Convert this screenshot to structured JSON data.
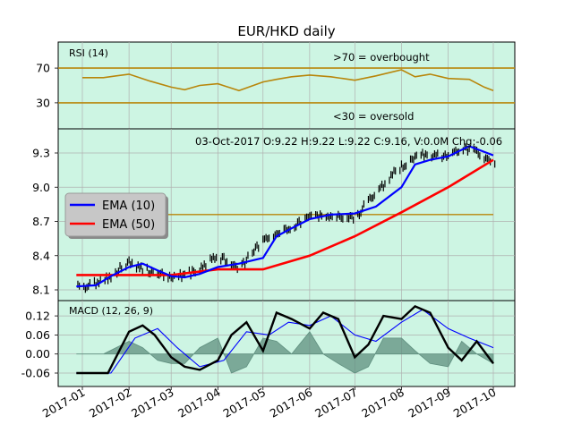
{
  "chart_data": {
    "type": "line",
    "title": "EUR/HKD daily",
    "x_ticks": [
      "2017-01",
      "2017-02",
      "2017-03",
      "2017-04",
      "2017-05",
      "2017-06",
      "2017-07",
      "2017-08",
      "2017-09",
      "2017-10"
    ],
    "colors": {
      "panel_bg": "#cdf5e3",
      "rsi_line": "#b8860b",
      "ema_fast": "#0000ff",
      "ema_slow": "#ff0000",
      "macd_line": "#000000",
      "macd_signal": "#0000ff",
      "macd_hist": "#5f8f7f",
      "hline": "#b8860b"
    },
    "panels": [
      {
        "name": "rsi",
        "label": "RSI (14)",
        "ylim": [
          0,
          100
        ],
        "yticks": [
          "30",
          "70"
        ],
        "hlines": [
          30,
          70
        ],
        "annotations": [
          ">70 = overbought",
          "<30 = oversold"
        ],
        "series": [
          {
            "x": [
              "2017-01-01",
              "2017-01-15",
              "2017-02-01",
              "2017-02-15",
              "2017-03-01",
              "2017-03-10",
              "2017-03-20",
              "2017-04-01",
              "2017-04-15",
              "2017-05-01",
              "2017-05-10",
              "2017-05-20",
              "2017-06-01",
              "2017-06-15",
              "2017-07-01",
              "2017-07-15",
              "2017-08-01",
              "2017-08-10",
              "2017-08-20",
              "2017-09-01",
              "2017-09-15",
              "2017-09-25",
              "2017-10-01"
            ],
            "y": [
              59,
              59,
              63,
              55,
              48,
              45,
              50,
              52,
              44,
              54,
              57,
              60,
              62,
              60,
              56,
              61,
              68,
              60,
              63,
              58,
              57,
              48,
              44
            ]
          }
        ]
      },
      {
        "name": "price",
        "ylim": [
          8.0,
          9.5
        ],
        "yticks": [
          "8.1",
          "8.4",
          "8.7",
          "9.0",
          "9.3"
        ],
        "hlines": [
          8.76
        ],
        "ohlc_readout": "03-Oct-2017 O:9.22 H:9.22 L:9.22 C:9.16, V:0.0M Chg:-0.06",
        "legend": {
          "entries": [
            "EMA (10)",
            "EMA (50)"
          ],
          "location": "center-left"
        },
        "close": {
          "x": [
            "2017-01-01",
            "2017-01-15",
            "2017-02-01",
            "2017-02-15",
            "2017-03-01",
            "2017-03-15",
            "2017-04-01",
            "2017-04-15",
            "2017-05-01",
            "2017-05-15",
            "2017-06-01",
            "2017-06-15",
            "2017-07-01",
            "2017-07-15",
            "2017-08-01",
            "2017-08-15",
            "2017-09-01",
            "2017-09-15",
            "2017-10-01"
          ],
          "y": [
            8.12,
            8.18,
            8.34,
            8.26,
            8.21,
            8.25,
            8.4,
            8.28,
            8.53,
            8.62,
            8.74,
            8.76,
            8.73,
            8.95,
            9.19,
            9.28,
            9.28,
            9.34,
            9.2
          ]
        },
        "series": [
          {
            "name": "EMA (10)",
            "x": [
              "2016-12-28",
              "2017-01-10",
              "2017-01-20",
              "2017-02-01",
              "2017-02-10",
              "2017-02-20",
              "2017-03-01",
              "2017-03-10",
              "2017-03-20",
              "2017-04-01",
              "2017-04-15",
              "2017-05-01",
              "2017-05-10",
              "2017-05-20",
              "2017-06-01",
              "2017-06-15",
              "2017-07-01",
              "2017-07-15",
              "2017-08-01",
              "2017-08-10",
              "2017-08-20",
              "2017-09-01",
              "2017-09-15",
              "2017-10-01"
            ],
            "y": [
              8.13,
              8.14,
              8.22,
              8.3,
              8.33,
              8.27,
              8.22,
              8.21,
              8.24,
              8.3,
              8.33,
              8.38,
              8.57,
              8.64,
              8.72,
              8.76,
              8.77,
              8.83,
              9.0,
              9.2,
              9.24,
              9.27,
              9.36,
              9.28
            ]
          },
          {
            "name": "EMA (50)",
            "x": [
              "2016-12-28",
              "2017-02-01",
              "2017-03-01",
              "2017-04-01",
              "2017-05-01",
              "2017-06-01",
              "2017-07-01",
              "2017-08-01",
              "2017-09-01",
              "2017-10-01"
            ],
            "y": [
              8.23,
              8.23,
              8.23,
              8.28,
              8.28,
              8.4,
              8.57,
              8.78,
              9.0,
              9.24
            ]
          }
        ]
      },
      {
        "name": "macd",
        "label": "MACD (12, 26, 9)",
        "ylim": [
          -0.08,
          0.14
        ],
        "yticks": [
          "-0.06",
          "0.00",
          "0.06",
          "0.12"
        ],
        "series": [
          {
            "name": "MACD",
            "x": [
              "2016-12-28",
              "2017-01-18",
              "2017-02-01",
              "2017-02-10",
              "2017-02-18",
              "2017-03-01",
              "2017-03-10",
              "2017-03-20",
              "2017-04-01",
              "2017-04-10",
              "2017-04-20",
              "2017-05-01",
              "2017-05-10",
              "2017-05-20",
              "2017-06-01",
              "2017-06-10",
              "2017-06-20",
              "2017-07-01",
              "2017-07-10",
              "2017-07-20",
              "2017-08-01",
              "2017-08-10",
              "2017-08-20",
              "2017-09-01",
              "2017-09-10",
              "2017-09-20",
              "2017-10-01"
            ],
            "y": [
              -0.06,
              -0.06,
              0.07,
              0.09,
              0.06,
              -0.01,
              -0.04,
              -0.05,
              -0.02,
              0.06,
              0.1,
              0.01,
              0.13,
              0.11,
              0.08,
              0.13,
              0.11,
              -0.01,
              0.03,
              0.12,
              0.11,
              0.15,
              0.13,
              0.02,
              -0.02,
              0.04,
              -0.03
            ]
          },
          {
            "name": "Signal",
            "x": [
              "2016-12-28",
              "2017-01-20",
              "2017-02-05",
              "2017-02-20",
              "2017-03-05",
              "2017-03-20",
              "2017-04-05",
              "2017-04-20",
              "2017-05-05",
              "2017-05-18",
              "2017-06-01",
              "2017-06-15",
              "2017-07-01",
              "2017-07-15",
              "2017-08-01",
              "2017-08-15",
              "2017-09-01",
              "2017-09-15",
              "2017-10-01"
            ],
            "y": [
              -0.06,
              -0.06,
              0.05,
              0.08,
              0.02,
              -0.04,
              -0.02,
              0.07,
              0.06,
              0.1,
              0.09,
              0.12,
              0.06,
              0.04,
              0.1,
              0.14,
              0.08,
              0.05,
              0.02
            ]
          },
          {
            "name": "Histogram",
            "x": [
              "2016-12-28",
              "2017-01-15",
              "2017-02-01",
              "2017-02-10",
              "2017-02-20",
              "2017-03-01",
              "2017-03-10",
              "2017-03-20",
              "2017-04-01",
              "2017-04-10",
              "2017-04-20",
              "2017-05-01",
              "2017-05-10",
              "2017-05-20",
              "2017-06-01",
              "2017-06-10",
              "2017-06-20",
              "2017-07-01",
              "2017-07-10",
              "2017-07-20",
              "2017-08-01",
              "2017-08-10",
              "2017-08-20",
              "2017-09-01",
              "2017-09-10",
              "2017-09-20",
              "2017-10-01"
            ],
            "y": [
              0,
              0,
              0.04,
              0.02,
              -0.02,
              -0.03,
              -0.03,
              0.02,
              0.05,
              -0.06,
              -0.04,
              0.05,
              0.04,
              0.0,
              0.07,
              0.0,
              -0.03,
              -0.06,
              -0.04,
              0.05,
              0.05,
              0.01,
              -0.03,
              -0.04,
              0.04,
              0.0,
              -0.03
            ]
          }
        ]
      }
    ]
  }
}
